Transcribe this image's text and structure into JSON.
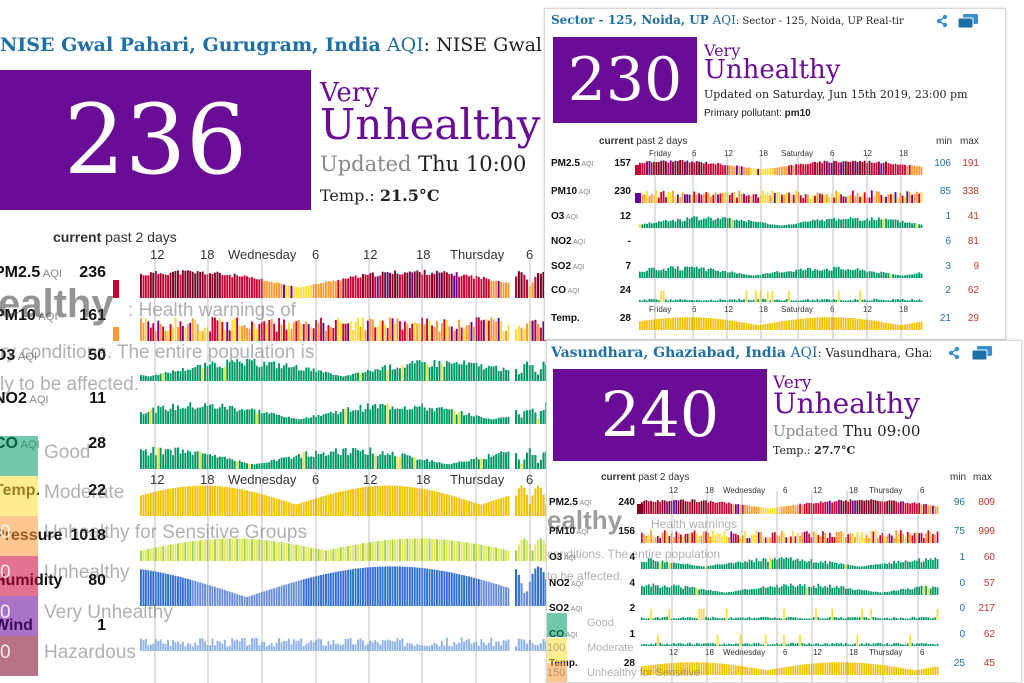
{
  "colors": {
    "good": "#009966",
    "moderate": "#ffde33",
    "sensitive": "#ff9933",
    "unhealthy": "#cc0033",
    "very_unhealthy": "#660099",
    "hazardous": "#7e0023",
    "aqi_box": "#6a0d96",
    "link": "#1d6fa5"
  },
  "panel1": {
    "location": "NISE Gwal Pahari, Gurugram, India",
    "aqi_word": "AQI",
    "header_rest": ": NISE Gwal Pa",
    "aqi": "236",
    "very": "Very",
    "unhealthy": "Unhealthy",
    "updated_label": "Updated",
    "updated_time": "Thu 10:00",
    "temp_label": "Temp.:",
    "temp_value": "21.5°C",
    "current_label": "current",
    "past_label": "past 2 days",
    "axis_top": [
      "12",
      "18",
      "Wednesday",
      "6",
      "12",
      "18",
      "Thursday",
      "6"
    ],
    "axis_bottom": [
      "12",
      "18",
      "Wednesday",
      "6",
      "12",
      "18",
      "Thursday",
      "6"
    ],
    "rows": [
      {
        "label": "PM2.5",
        "unit": "AQI",
        "value": "236"
      },
      {
        "label": "PM10",
        "unit": "AQI",
        "value": "161"
      },
      {
        "label": "O3",
        "unit": "AQI",
        "value": "50"
      },
      {
        "label": "NO2",
        "unit": "AQI",
        "value": "11"
      },
      {
        "label": "CO",
        "unit": "AQI",
        "value": "28"
      },
      {
        "label": "Temp.",
        "unit": "",
        "value": "22"
      },
      {
        "label": "Pressure",
        "unit": "",
        "value": "1018"
      },
      {
        "label": "Humidity",
        "unit": "",
        "value": "80"
      },
      {
        "label": "Wind",
        "unit": "",
        "value": "1"
      }
    ],
    "ghost": {
      "big": "ealthy",
      "health_warn": ": Health warnings of",
      "line1": "ry conditions. The entire population is",
      "line2": "ly to be affected.",
      "legend": [
        "Good",
        "Moderate",
        "Unhealthy for Sensitive Groups",
        "Unhealthy",
        "Very Unhealthy",
        "Hazardous"
      ],
      "legend_nums": [
        "",
        "",
        "0",
        "0",
        "0",
        "0"
      ]
    }
  },
  "panel2": {
    "location": "Sector - 125, Noida, UP",
    "aqi_word": "AQI",
    "header_rest": ": Sector - 125, Noida, UP Real-tir",
    "aqi": "230",
    "very": "Very",
    "unhealthy": "Unhealthy",
    "updated": "Updated on Saturday, Jun 15th 2019, 23:00 pm",
    "pollutant_label": "Primary pollutant:",
    "pollutant": "pm10",
    "current_label": "current",
    "past_label": "past 2 days",
    "min_label": "min",
    "max_label": "max",
    "axis_top": [
      "Friday",
      "6",
      "12",
      "18",
      "Saturday",
      "6",
      "12",
      "18"
    ],
    "axis_bottom": [
      "Friday",
      "6",
      "12",
      "18",
      "Saturday",
      "6",
      "12",
      "18"
    ],
    "rows": [
      {
        "label": "PM2.5",
        "unit": "AQI",
        "value": "157",
        "min": "106",
        "max": "191"
      },
      {
        "label": "PM10",
        "unit": "AQI",
        "value": "230",
        "min": "85",
        "max": "338"
      },
      {
        "label": "O3",
        "unit": "AQI",
        "value": "12",
        "min": "1",
        "max": "41"
      },
      {
        "label": "NO2",
        "unit": "AQI",
        "value": "-",
        "min": "6",
        "max": "81"
      },
      {
        "label": "SO2",
        "unit": "AQI",
        "value": "7",
        "min": "3",
        "max": "9"
      },
      {
        "label": "CO",
        "unit": "AQI",
        "value": "24",
        "min": "2",
        "max": "62"
      },
      {
        "label": "Temp.",
        "unit": "",
        "value": "28",
        "min": "21",
        "max": "29"
      }
    ]
  },
  "panel3": {
    "location": "Vasundhara, Ghaziabad, India",
    "aqi_word": "AQI",
    "header_rest": ": Vasundhara, Ghazia",
    "aqi": "240",
    "very": "Very",
    "unhealthy": "Unhealthy",
    "updated_label": "Updated",
    "updated_time": "Thu 09:00",
    "temp_label": "Temp.:",
    "temp_value": "27.7°C",
    "current_label": "current",
    "past_label": "past 2 days",
    "min_label": "min",
    "max_label": "max",
    "axis_top": [
      "12",
      "18",
      "Wednesday",
      "6",
      "12",
      "18",
      "Thursday",
      "6"
    ],
    "axis_bottom": [
      "12",
      "18",
      "Wednesday",
      "6",
      "12",
      "18",
      "Thursday",
      "6"
    ],
    "rows": [
      {
        "label": "PM2.5",
        "unit": "AQI",
        "value": "240",
        "min": "96",
        "max": "809"
      },
      {
        "label": "PM10",
        "unit": "AQI",
        "value": "156",
        "min": "75",
        "max": "999"
      },
      {
        "label": "O3",
        "unit": "AQI",
        "value": "4",
        "min": "1",
        "max": "60"
      },
      {
        "label": "NO2",
        "unit": "AQI",
        "value": "4",
        "min": "0",
        "max": "57"
      },
      {
        "label": "SO2",
        "unit": "AQI",
        "value": "2",
        "min": "0",
        "max": "217"
      },
      {
        "label": "CO",
        "unit": "AQI",
        "value": "1",
        "min": "0",
        "max": "62"
      },
      {
        "label": "Temp.",
        "unit": "",
        "value": "28",
        "min": "25",
        "max": "45"
      }
    ],
    "ghost": {
      "big": "ealthy",
      "health_warn": "Health warnings",
      "line1": "conditions. The entire population",
      "line2": "to be affected.",
      "legend": [
        "Good",
        "Moderate",
        "Unhealthy for Sensitive"
      ],
      "legend_nums": [
        "",
        "100",
        "150"
      ]
    }
  }
}
